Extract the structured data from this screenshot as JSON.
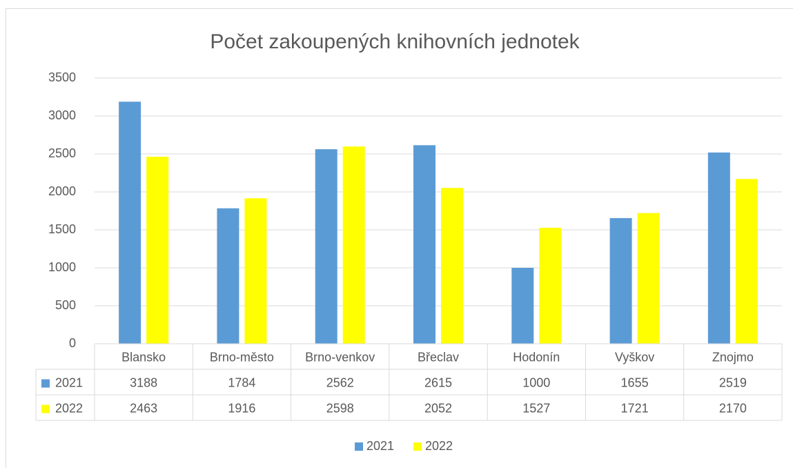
{
  "chart_data": {
    "type": "bar",
    "title": "Počet zakoupených knihovních jednotek",
    "categories": [
      "Blansko",
      "Brno-město",
      "Brno-venkov",
      "Břeclav",
      "Hodonín",
      "Vyškov",
      "Znojmo"
    ],
    "series": [
      {
        "name": "2021",
        "color": "#5b9bd5",
        "values": [
          3188,
          1784,
          2562,
          2615,
          1000,
          1655,
          2519
        ]
      },
      {
        "name": "2022",
        "color": "#ffff00",
        "values": [
          2463,
          1916,
          2598,
          2052,
          1527,
          1721,
          2170
        ]
      }
    ],
    "ylim": [
      0,
      3500
    ],
    "yticks": [
      0,
      500,
      1000,
      1500,
      2000,
      2500,
      3000,
      3500
    ],
    "grid": true,
    "legend": "bottom"
  }
}
